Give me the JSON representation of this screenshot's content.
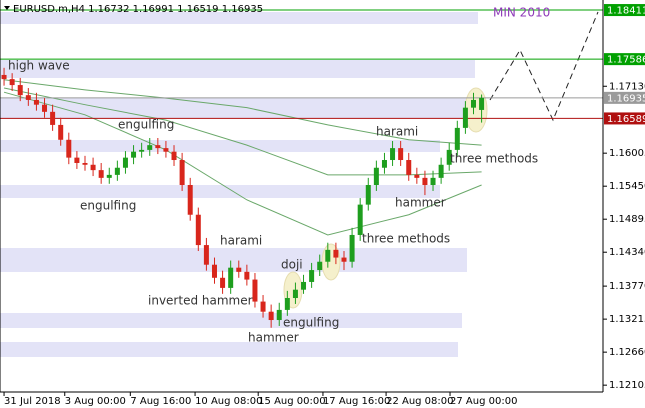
{
  "chart_data": {
    "type": "candlestick",
    "title": "EURUSD.m,H4  1.16732 1.16991 1.16519 1.16935",
    "note": "MIN 2010",
    "up_color": "#1e9e1e",
    "down_color": "#d8261c",
    "ylim": [
      1.1199,
      1.1858
    ],
    "yticks": [
      {
        "value": 1.1713,
        "label": "1.17130"
      },
      1.16005,
      {
        "value": 1.1545,
        "label": "1.15450"
      },
      1.14895,
      {
        "value": 1.1434,
        "label": "1.14340"
      },
      {
        "value": 1.1377,
        "label": "1.13770"
      },
      1.13215,
      {
        "value": 1.1266,
        "label": "1.12660"
      },
      1.12105
    ],
    "xlim": [
      -0.5,
      74
    ],
    "xticks": [
      {
        "value": 0,
        "label": "31 Jul 2018"
      },
      {
        "value": 7.5,
        "label": "3 Aug 00:00"
      },
      {
        "value": 15.6,
        "label": "7 Aug 16:00"
      },
      {
        "value": 23.6,
        "label": "10 Aug 08:00"
      },
      {
        "value": 31.4,
        "label": "15 Aug 00:00"
      },
      {
        "value": 39.4,
        "label": "17 Aug 16:00"
      },
      {
        "value": 47.2,
        "label": "22 Aug 08:00"
      },
      {
        "value": 55.1,
        "label": "27 Aug 00:00"
      }
    ],
    "levels": [
      {
        "value": 1.18411,
        "color": "#00a000"
      },
      {
        "value": 1.17586,
        "color": "#00a000"
      },
      {
        "value": 1.16935,
        "color": "#9a9a9a"
      },
      {
        "value": 1.16589,
        "color": "#b01010"
      }
    ],
    "annotations": [
      "high wave",
      "engulfing",
      "engulfing",
      "harami",
      "doji",
      "inverted hammer",
      "engulfing",
      "hammer",
      "three methods",
      "harami",
      "three methods",
      "hammer"
    ],
    "moving_averages": [
      {
        "color": "#6aa86a",
        "x": [
          0,
          10,
          20,
          30,
          40,
          50,
          59
        ],
        "values": [
          1.1724,
          1.1707,
          1.1693,
          1.1677,
          1.1648,
          1.1623,
          1.1614
        ]
      },
      {
        "color": "#6aa86a",
        "x": [
          0,
          10,
          20,
          30,
          40,
          50,
          59
        ],
        "values": [
          1.171,
          1.1682,
          1.1656,
          1.1614,
          1.1564,
          1.1564,
          1.1569
        ]
      },
      {
        "color": "#6aa86a",
        "x": [
          0,
          10,
          20,
          30,
          40,
          50,
          59
        ],
        "values": [
          1.1703,
          1.1665,
          1.1606,
          1.1522,
          1.1463,
          1.1497,
          1.1547
        ]
      }
    ],
    "candles": [
      [
        1.1732,
        1.1744,
        1.1714,
        1.1725
      ],
      [
        1.1725,
        1.1735,
        1.1705,
        1.1715
      ],
      [
        1.1715,
        1.1727,
        1.1688,
        1.1698
      ],
      [
        1.1698,
        1.171,
        1.168,
        1.169
      ],
      [
        1.169,
        1.1702,
        1.1672,
        1.1682
      ],
      [
        1.1682,
        1.1693,
        1.166,
        1.167
      ],
      [
        1.167,
        1.1682,
        1.1638,
        1.1648
      ],
      [
        1.1648,
        1.166,
        1.1613,
        1.1623
      ],
      [
        1.1623,
        1.1635,
        1.1582,
        1.1593
      ],
      [
        1.1593,
        1.1604,
        1.1574,
        1.1584
      ],
      [
        1.1584,
        1.1596,
        1.1571,
        1.1581
      ],
      [
        1.1581,
        1.1593,
        1.1562,
        1.1572
      ],
      [
        1.1572,
        1.1584,
        1.1549,
        1.1559
      ],
      [
        1.1559,
        1.1576,
        1.1549,
        1.1564
      ],
      [
        1.1564,
        1.1588,
        1.1554,
        1.1576
      ],
      [
        1.1576,
        1.1604,
        1.1566,
        1.1593
      ],
      [
        1.1593,
        1.1614,
        1.1582,
        1.1603
      ],
      [
        1.1603,
        1.1618,
        1.1593,
        1.1606
      ],
      [
        1.1606,
        1.1626,
        1.1596,
        1.1614
      ],
      [
        1.1614,
        1.1626,
        1.1599,
        1.1609
      ],
      [
        1.1609,
        1.1621,
        1.1593,
        1.1603
      ],
      [
        1.1603,
        1.1614,
        1.1579,
        1.1589
      ],
      [
        1.1589,
        1.1601,
        1.1537,
        1.1547
      ],
      [
        1.1547,
        1.1559,
        1.1487,
        1.1497
      ],
      [
        1.1497,
        1.1509,
        1.1436,
        1.1446
      ],
      [
        1.1446,
        1.1458,
        1.1403,
        1.1413
      ],
      [
        1.1413,
        1.1425,
        1.1381,
        1.1391
      ],
      [
        1.1391,
        1.1403,
        1.1364,
        1.1374
      ],
      [
        1.1374,
        1.142,
        1.1364,
        1.1408
      ],
      [
        1.1408,
        1.142,
        1.1391,
        1.1401
      ],
      [
        1.1401,
        1.1413,
        1.1378,
        1.1388
      ],
      [
        1.1388,
        1.1399,
        1.1341,
        1.1351
      ],
      [
        1.1351,
        1.1362,
        1.1324,
        1.1334
      ],
      [
        1.1334,
        1.1346,
        1.1307,
        1.132
      ],
      [
        1.132,
        1.1349,
        1.131,
        1.1337
      ],
      [
        1.1337,
        1.1369,
        1.1327,
        1.1357
      ],
      [
        1.1357,
        1.1383,
        1.1347,
        1.1371
      ],
      [
        1.1371,
        1.1396,
        1.1364,
        1.1384
      ],
      [
        1.1384,
        1.1416,
        1.1374,
        1.1404
      ],
      [
        1.1404,
        1.143,
        1.1394,
        1.1418
      ],
      [
        1.1418,
        1.145,
        1.1408,
        1.1438
      ],
      [
        1.1438,
        1.145,
        1.1414,
        1.1425
      ],
      [
        1.1425,
        1.1436,
        1.1404,
        1.1418
      ],
      [
        1.1418,
        1.1475,
        1.1408,
        1.1463
      ],
      [
        1.1463,
        1.1525,
        1.1453,
        1.1514
      ],
      [
        1.1514,
        1.1559,
        1.1504,
        1.1547
      ],
      [
        1.1547,
        1.1588,
        1.1537,
        1.1576
      ],
      [
        1.1576,
        1.1601,
        1.1566,
        1.1589
      ],
      [
        1.1589,
        1.1621,
        1.1579,
        1.1609
      ],
      [
        1.1609,
        1.1621,
        1.1579,
        1.1589
      ],
      [
        1.1589,
        1.1601,
        1.1554,
        1.1564
      ],
      [
        1.1564,
        1.1576,
        1.1549,
        1.1559
      ],
      [
        1.1559,
        1.1571,
        1.153,
        1.1547
      ],
      [
        1.1547,
        1.1571,
        1.1537,
        1.1559
      ],
      [
        1.1559,
        1.1593,
        1.1549,
        1.1581
      ],
      [
        1.1581,
        1.1618,
        1.1571,
        1.1606
      ],
      [
        1.1606,
        1.1655,
        1.1596,
        1.1643
      ],
      [
        1.1643,
        1.1688,
        1.1633,
        1.1677
      ],
      [
        1.1677,
        1.1702,
        1.1666,
        1.169
      ],
      [
        1.16732,
        1.16991,
        1.16519,
        1.16935
      ]
    ]
  }
}
